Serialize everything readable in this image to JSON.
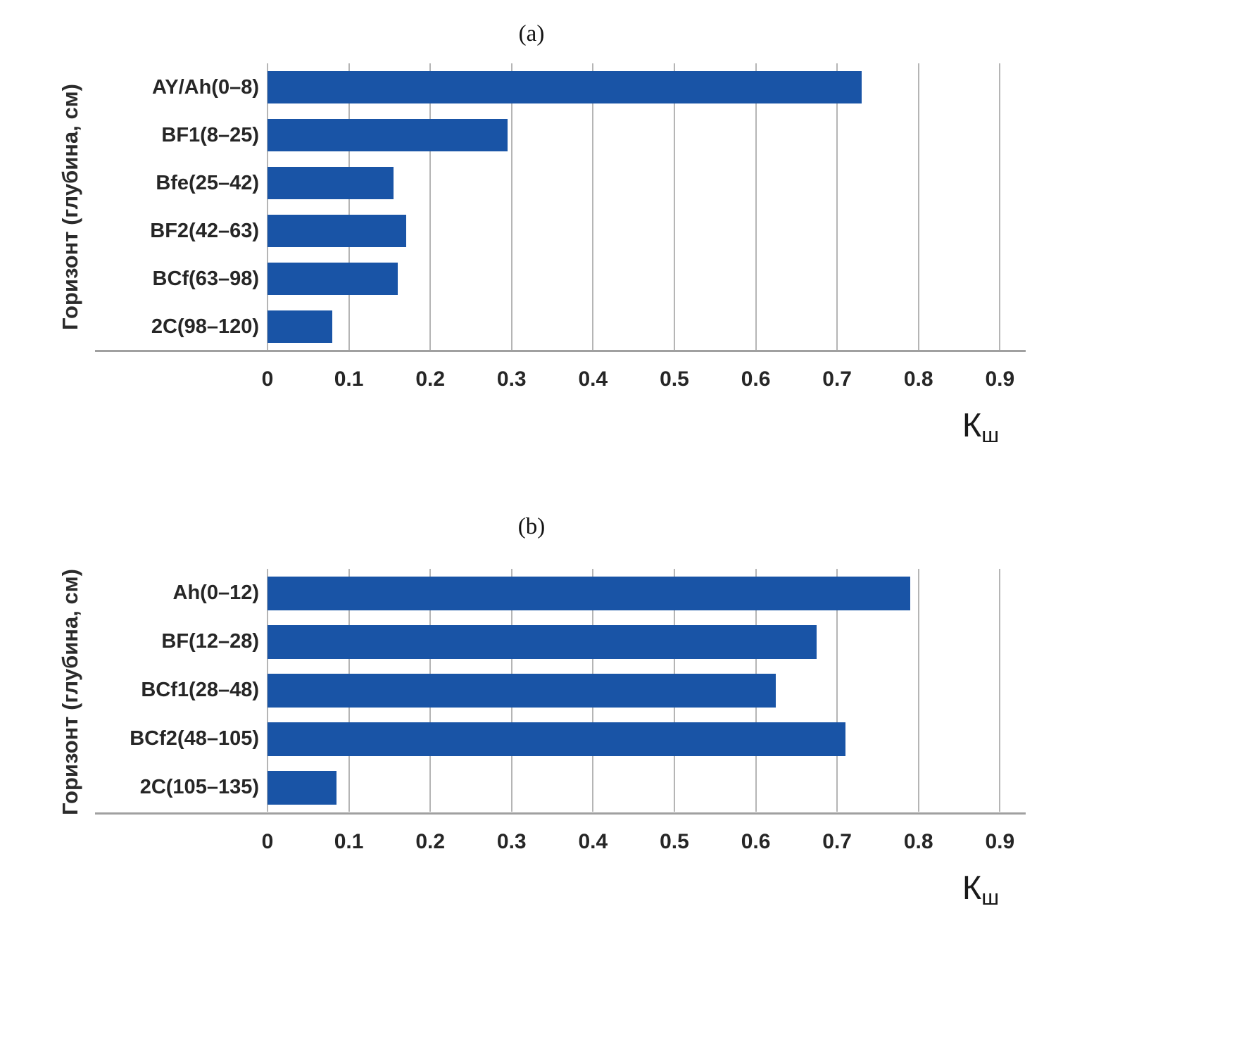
{
  "page": {
    "background": "#ffffff"
  },
  "chart_data": [
    {
      "type": "bar",
      "orientation": "horizontal",
      "title": "(a)",
      "ylabel": "Горизонт (глубина, см)",
      "xlabel": "Кш",
      "xlabel_main": "К",
      "xlabel_sub": "ш",
      "categories": [
        "AY/Ah(0–8)",
        "BF1(8–25)",
        "Bfe(25–42)",
        "BF2(42–63)",
        "BCf(63–98)",
        "2C(98–120)"
      ],
      "values": [
        0.73,
        0.295,
        0.155,
        0.17,
        0.16,
        0.08
      ],
      "xticks": [
        "0",
        "0.1",
        "0.2",
        "0.3",
        "0.4",
        "0.5",
        "0.6",
        "0.7",
        "0.8",
        "0.9"
      ],
      "xlim": [
        0,
        0.93
      ],
      "grid": true,
      "legend_position": "none",
      "bar_color": "#1954a6",
      "gridline_color": "#b5b5b5",
      "axis_color": "#a0a0a0"
    },
    {
      "type": "bar",
      "orientation": "horizontal",
      "title": "(b)",
      "ylabel": "Горизонт (глубина, см)",
      "xlabel": "Кш",
      "xlabel_main": "К",
      "xlabel_sub": "ш",
      "categories": [
        "Ah(0–12)",
        "BF(12–28)",
        "BCf1(28–48)",
        "BCf2(48–105)",
        "2C(105–135)"
      ],
      "values": [
        0.79,
        0.675,
        0.625,
        0.71,
        0.085
      ],
      "xticks": [
        "0",
        "0.1",
        "0.2",
        "0.3",
        "0.4",
        "0.5",
        "0.6",
        "0.7",
        "0.8",
        "0.9"
      ],
      "xlim": [
        0,
        0.93
      ],
      "grid": true,
      "legend_position": "none",
      "bar_color": "#1954a6",
      "gridline_color": "#b5b5b5",
      "axis_color": "#a0a0a0"
    }
  ]
}
